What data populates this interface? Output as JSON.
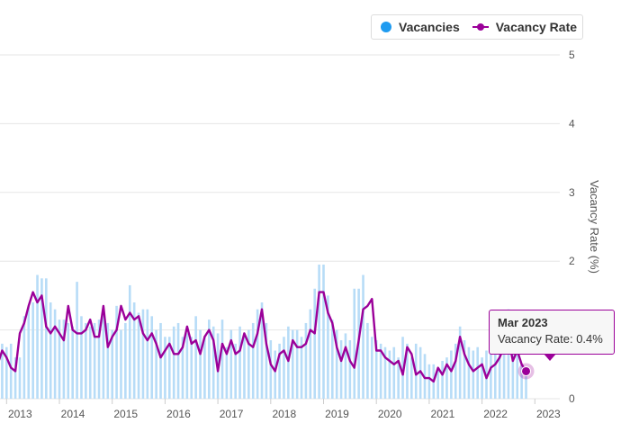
{
  "chart_data": {
    "type": "bar+line",
    "title": "",
    "x_ticks": [
      "2013",
      "2014",
      "2015",
      "2016",
      "2017",
      "2018",
      "2019",
      "2020",
      "2021",
      "2022",
      "2023"
    ],
    "y_right": {
      "label": "Vacancy Rate (%)",
      "ticks": [
        "0",
        "1",
        "2",
        "3",
        "4",
        "5"
      ],
      "ylim": [
        0,
        5
      ]
    },
    "legend": {
      "position": "top-right",
      "items": [
        "Vacancies",
        "Vacancy Rate"
      ]
    },
    "grid": true,
    "months_start": "2012-09",
    "series": [
      {
        "name": "Vacancies",
        "type": "bar",
        "axis": "hidden",
        "values": [
          1.1,
          1.05,
          1.2,
          0.8,
          0.75,
          0.8,
          0.6,
          0.6,
          1.2,
          1.35,
          1.4,
          1.8,
          1.75,
          1.75,
          1.4,
          1.3,
          1.15,
          1.15,
          1.1,
          1.05,
          1.7,
          1.2,
          1.1,
          1.05,
          1.1,
          1.15,
          1.3,
          1.1,
          1.0,
          1.35,
          1.0,
          1.1,
          1.65,
          1.4,
          1.25,
          1.3,
          1.3,
          1.2,
          1.0,
          1.1,
          0.9,
          0.9,
          1.05,
          1.1,
          0.9,
          0.95,
          0.9,
          1.2,
          1.0,
          0.9,
          1.15,
          1.05,
          0.95,
          1.15,
          0.75,
          1.0,
          0.8,
          1.05,
          0.9,
          1.0,
          1.1,
          1.3,
          1.4,
          1.1,
          0.85,
          0.7,
          0.8,
          0.9,
          1.05,
          1.0,
          1.0,
          0.9,
          1.1,
          1.3,
          1.6,
          1.95,
          1.95,
          1.5,
          1.15,
          1.0,
          0.85,
          0.95,
          0.85,
          1.6,
          1.6,
          1.8,
          1.1,
          0.9,
          0.85,
          0.8,
          0.75,
          0.7,
          0.75,
          0.6,
          0.9,
          0.8,
          0.6,
          0.8,
          0.75,
          0.65,
          0.5,
          0.5,
          0.45,
          0.55,
          0.6,
          0.7,
          0.8,
          1.05,
          0.85,
          0.75,
          0.7,
          0.75,
          0.6,
          0.7,
          0.7,
          0.8,
          0.75,
          1.1,
          1.3,
          0.75,
          0.7,
          0.5,
          0.45
        ]
      },
      {
        "name": "Vacancy Rate",
        "type": "line",
        "axis": "right",
        "unit": "%",
        "values": [
          0.4,
          1.0,
          0.5,
          0.7,
          0.6,
          0.45,
          0.4,
          0.95,
          1.1,
          1.35,
          1.55,
          1.4,
          1.5,
          1.05,
          0.95,
          1.05,
          0.95,
          0.85,
          1.35,
          1.0,
          0.95,
          0.95,
          1.0,
          1.15,
          0.9,
          0.9,
          1.35,
          0.75,
          0.9,
          1.0,
          1.35,
          1.15,
          1.25,
          1.15,
          1.2,
          0.95,
          0.85,
          0.95,
          0.8,
          0.6,
          0.7,
          0.8,
          0.65,
          0.65,
          0.75,
          1.05,
          0.8,
          0.85,
          0.65,
          0.9,
          1.0,
          0.85,
          0.4,
          0.8,
          0.65,
          0.85,
          0.65,
          0.7,
          0.95,
          0.8,
          0.75,
          0.95,
          1.3,
          0.8,
          0.5,
          0.4,
          0.65,
          0.7,
          0.55,
          0.85,
          0.75,
          0.75,
          0.8,
          1.0,
          0.95,
          1.55,
          1.55,
          1.25,
          1.1,
          0.75,
          0.55,
          0.75,
          0.55,
          0.45,
          0.85,
          1.3,
          1.35,
          1.45,
          0.7,
          0.7,
          0.6,
          0.55,
          0.5,
          0.55,
          0.35,
          0.75,
          0.65,
          0.35,
          0.4,
          0.3,
          0.3,
          0.25,
          0.45,
          0.35,
          0.5,
          0.4,
          0.55,
          0.9,
          0.65,
          0.5,
          0.4,
          0.45,
          0.5,
          0.3,
          0.45,
          0.5,
          0.6,
          0.75,
          0.9,
          0.55,
          0.7,
          0.5,
          0.4
        ]
      }
    ],
    "tooltip": {
      "title": "Mar 2023",
      "text": "Vacancy Rate: 0.4%"
    }
  },
  "colors": {
    "vacancies": "#b7dcf7",
    "vacancies_legend": "#1f9bf0",
    "rate": "#9b0099",
    "grid": "#e6e6e6",
    "axis_text": "#555555"
  }
}
